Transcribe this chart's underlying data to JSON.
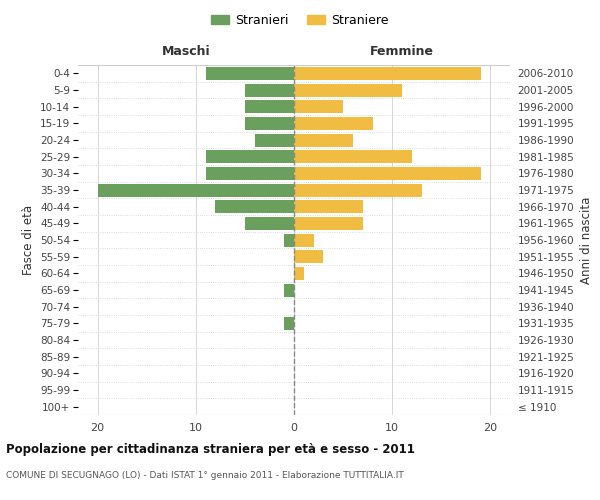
{
  "age_groups": [
    "100+",
    "95-99",
    "90-94",
    "85-89",
    "80-84",
    "75-79",
    "70-74",
    "65-69",
    "60-64",
    "55-59",
    "50-54",
    "45-49",
    "40-44",
    "35-39",
    "30-34",
    "25-29",
    "20-24",
    "15-19",
    "10-14",
    "5-9",
    "0-4"
  ],
  "birth_years": [
    "≤ 1910",
    "1911-1915",
    "1916-1920",
    "1921-1925",
    "1926-1930",
    "1931-1935",
    "1936-1940",
    "1941-1945",
    "1946-1950",
    "1951-1955",
    "1956-1960",
    "1961-1965",
    "1966-1970",
    "1971-1975",
    "1976-1980",
    "1981-1985",
    "1986-1990",
    "1991-1995",
    "1996-2000",
    "2001-2005",
    "2006-2010"
  ],
  "maschi": [
    0,
    0,
    0,
    0,
    0,
    1,
    0,
    1,
    0,
    0,
    1,
    5,
    8,
    20,
    9,
    9,
    4,
    5,
    5,
    5,
    9
  ],
  "femmine": [
    0,
    0,
    0,
    0,
    0,
    0,
    0,
    0,
    1,
    3,
    2,
    7,
    7,
    13,
    19,
    12,
    6,
    8,
    5,
    11,
    19
  ],
  "color_maschi": "#6a9f5e",
  "color_femmine": "#f0bc42",
  "title": "Popolazione per cittadinanza straniera per età e sesso - 2011",
  "subtitle": "COMUNE DI SECUGNAGO (LO) - Dati ISTAT 1° gennaio 2011 - Elaborazione TUTTITALIA.IT",
  "xlabel_left": "Maschi",
  "xlabel_right": "Femmine",
  "ylabel_left": "Fasce di età",
  "ylabel_right": "Anni di nascita",
  "legend_maschi": "Stranieri",
  "legend_femmine": "Straniere",
  "xlim": 22,
  "bg_color": "#ffffff",
  "grid_color": "#d0d0d0",
  "spine_color": "#cccccc"
}
